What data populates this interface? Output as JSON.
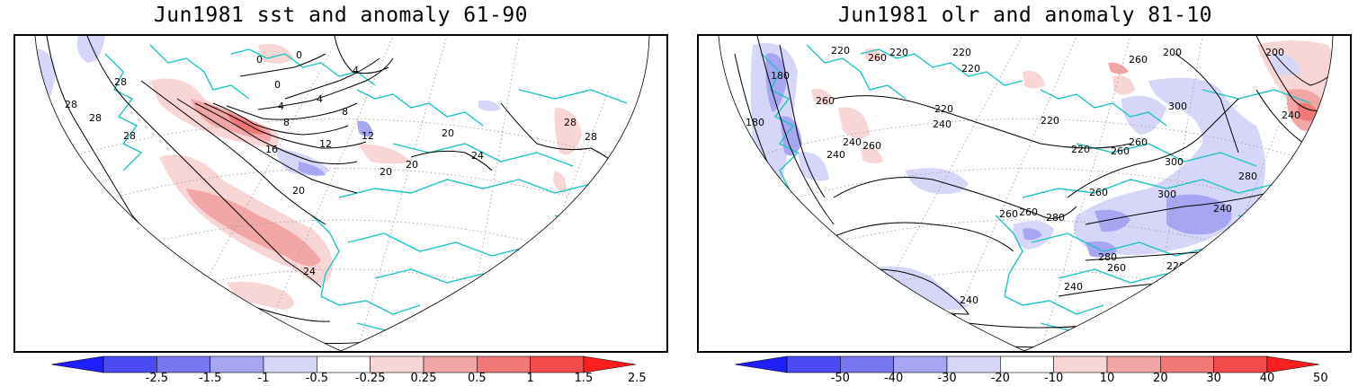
{
  "panels": [
    {
      "title": "Jun1981 sst and anomaly 61-90",
      "contour_labels": [
        "28",
        "28",
        "28",
        "28",
        "28",
        "28",
        "24",
        "24",
        "20",
        "20",
        "20",
        "20",
        "16",
        "12",
        "12",
        "8",
        "8",
        "4",
        "4",
        "4",
        "0",
        "0",
        "0"
      ],
      "colorbar": {
        "labels": [
          "-2.5",
          "-1.5",
          "-1",
          "-0.5",
          "-0.25",
          "0.25",
          "0.5",
          "1",
          "1.5",
          "2.5"
        ],
        "colors": [
          "#1e1eff",
          "#4b4bf2",
          "#7777f2",
          "#a6a6f2",
          "#d6d6f8",
          "#ffffff",
          "#f8d6d6",
          "#f2a6a6",
          "#f27777",
          "#f24b4b",
          "#ff1e1e"
        ]
      }
    },
    {
      "title": "Jun1981 olr and anomaly 81-10",
      "contour_labels": [
        "180",
        "180",
        "180",
        "200",
        "200",
        "200",
        "200",
        "200",
        "220",
        "220",
        "220",
        "220",
        "220",
        "220",
        "220",
        "220",
        "220",
        "220",
        "220",
        "240",
        "240",
        "240",
        "240",
        "240",
        "240",
        "240",
        "240",
        "240",
        "240",
        "260",
        "260",
        "260",
        "260",
        "260",
        "260",
        "260",
        "260",
        "260",
        "260",
        "260",
        "280",
        "280",
        "280",
        "280",
        "300",
        "300",
        "300"
      ],
      "colorbar": {
        "labels": [
          "-50",
          "-40",
          "-30",
          "-20",
          "-10",
          "10",
          "20",
          "30",
          "40",
          "50"
        ],
        "colors": [
          "#1e1eff",
          "#4b4bf2",
          "#7777f2",
          "#a6a6f2",
          "#d6d6f8",
          "#ffffff",
          "#f8d6d6",
          "#f2a6a6",
          "#f27777",
          "#f24b4b",
          "#ff1e1e"
        ]
      }
    }
  ],
  "map_colors": {
    "coastline": "#1fc3c3",
    "contour": "#000000",
    "grid": "#9a9a9a",
    "frame": "#000000"
  }
}
